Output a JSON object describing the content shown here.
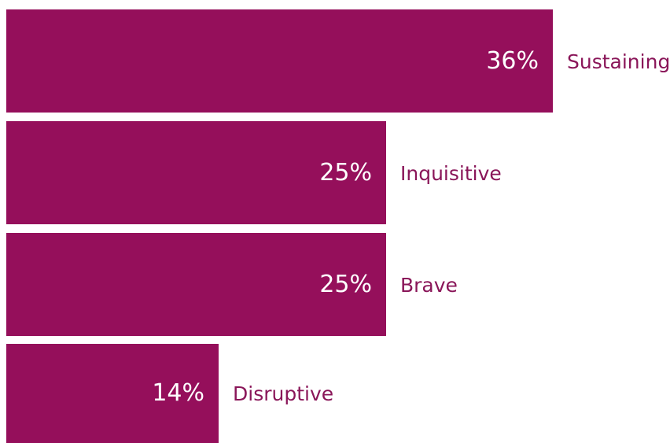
{
  "chart_data": {
    "type": "bar",
    "orientation": "horizontal",
    "categories": [
      "Sustaining",
      "Inquisitive",
      "Brave",
      "Disruptive"
    ],
    "values": [
      36,
      25,
      25,
      14
    ],
    "value_labels": [
      "36%",
      "25%",
      "25%",
      "14%"
    ],
    "title": "",
    "xlabel": "",
    "ylabel": "",
    "grid": false,
    "legend": "none",
    "bar_color": "#950f5b",
    "value_label_color": "#ffffff",
    "category_label_color": "#8a1659"
  }
}
